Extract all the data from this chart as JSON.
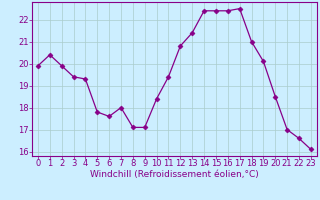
{
  "x": [
    0,
    1,
    2,
    3,
    4,
    5,
    6,
    7,
    8,
    9,
    10,
    11,
    12,
    13,
    14,
    15,
    16,
    17,
    18,
    19,
    20,
    21,
    22,
    23
  ],
  "y": [
    19.9,
    20.4,
    19.9,
    19.4,
    19.3,
    17.8,
    17.6,
    18.0,
    17.1,
    17.1,
    18.4,
    19.4,
    20.8,
    21.4,
    22.4,
    22.4,
    22.4,
    22.5,
    21.0,
    20.1,
    18.5,
    17.0,
    16.6,
    16.1
  ],
  "line_color": "#880088",
  "marker": "D",
  "marker_size": 2.5,
  "bg_color": "#cceeff",
  "grid_color": "#aacccc",
  "xlabel": "Windchill (Refroidissement éolien,°C)",
  "ylabel": "",
  "ylim": [
    15.8,
    22.8
  ],
  "xlim": [
    -0.5,
    23.5
  ],
  "yticks": [
    16,
    17,
    18,
    19,
    20,
    21,
    22
  ],
  "xticks": [
    0,
    1,
    2,
    3,
    4,
    5,
    6,
    7,
    8,
    9,
    10,
    11,
    12,
    13,
    14,
    15,
    16,
    17,
    18,
    19,
    20,
    21,
    22,
    23
  ],
  "xtick_labels": [
    "0",
    "1",
    "2",
    "3",
    "4",
    "5",
    "6",
    "7",
    "8",
    "9",
    "10",
    "11",
    "12",
    "13",
    "14",
    "15",
    "16",
    "17",
    "18",
    "19",
    "20",
    "21",
    "22",
    "23"
  ],
  "axis_color": "#880088",
  "tick_color": "#880088",
  "label_color": "#880088",
  "label_fontsize": 6.5,
  "tick_fontsize": 6.0
}
